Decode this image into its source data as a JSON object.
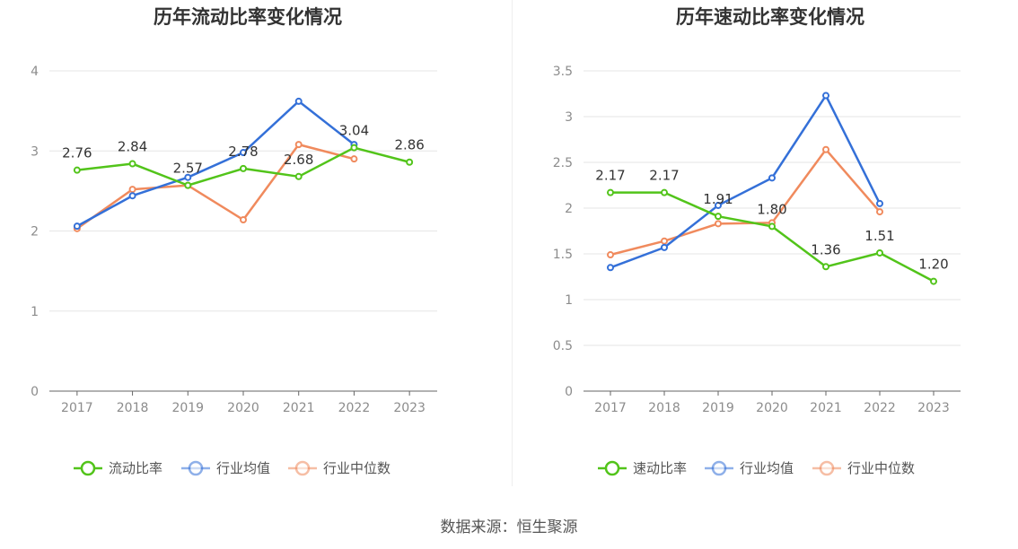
{
  "colors": {
    "main": "#52c41a",
    "avg": "#3470d8",
    "median": "#f08a5d",
    "grid": "#e6e6e6",
    "axis": "#666666"
  },
  "source_text": "数据来源：恒生聚源",
  "chart_data": [
    {
      "type": "line",
      "title": "历年流动比率变化情况",
      "categories": [
        "2017",
        "2018",
        "2019",
        "2020",
        "2021",
        "2022",
        "2023"
      ],
      "ylim": [
        0,
        4
      ],
      "yticks": [
        "0",
        "1",
        "2",
        "3",
        "4"
      ],
      "ytick_values": [
        0,
        1,
        2,
        3,
        4
      ],
      "grid": true,
      "legend_position": "bottom",
      "series": [
        {
          "name": "流动比率",
          "color": "#52c41a",
          "values": [
            2.76,
            2.84,
            2.57,
            2.78,
            2.68,
            3.04,
            2.86
          ],
          "labels": [
            "2.76",
            "2.84",
            "2.57",
            "2.78",
            "2.68",
            "3.04",
            "2.86"
          ]
        },
        {
          "name": "行业均值",
          "color": "#3470d8",
          "values": [
            2.06,
            2.44,
            2.67,
            2.98,
            3.62,
            3.08,
            null
          ]
        },
        {
          "name": "行业中位数",
          "color": "#f08a5d",
          "values": [
            2.03,
            2.52,
            2.57,
            2.14,
            3.08,
            2.9,
            null
          ]
        }
      ]
    },
    {
      "type": "line",
      "title": "历年速动比率变化情况",
      "categories": [
        "2017",
        "2018",
        "2019",
        "2020",
        "2021",
        "2022",
        "2023"
      ],
      "ylim": [
        0,
        3.5
      ],
      "yticks": [
        "0",
        "0.5",
        "1",
        "1.5",
        "2",
        "2.5",
        "3",
        "3.5"
      ],
      "ytick_values": [
        0,
        0.5,
        1,
        1.5,
        2,
        2.5,
        3,
        3.5
      ],
      "grid": true,
      "legend_position": "bottom",
      "series": [
        {
          "name": "速动比率",
          "color": "#52c41a",
          "values": [
            2.17,
            2.17,
            1.91,
            1.8,
            1.36,
            1.51,
            1.2
          ],
          "labels": [
            "2.17",
            "2.17",
            "1.91",
            "1.80",
            "1.36",
            "1.51",
            "1.20"
          ]
        },
        {
          "name": "行业均值",
          "color": "#3470d8",
          "values": [
            1.35,
            1.57,
            2.03,
            2.33,
            3.23,
            2.05,
            null
          ]
        },
        {
          "name": "行业中位数",
          "color": "#f08a5d",
          "values": [
            1.49,
            1.64,
            1.83,
            1.84,
            2.64,
            1.96,
            null
          ]
        }
      ]
    }
  ]
}
